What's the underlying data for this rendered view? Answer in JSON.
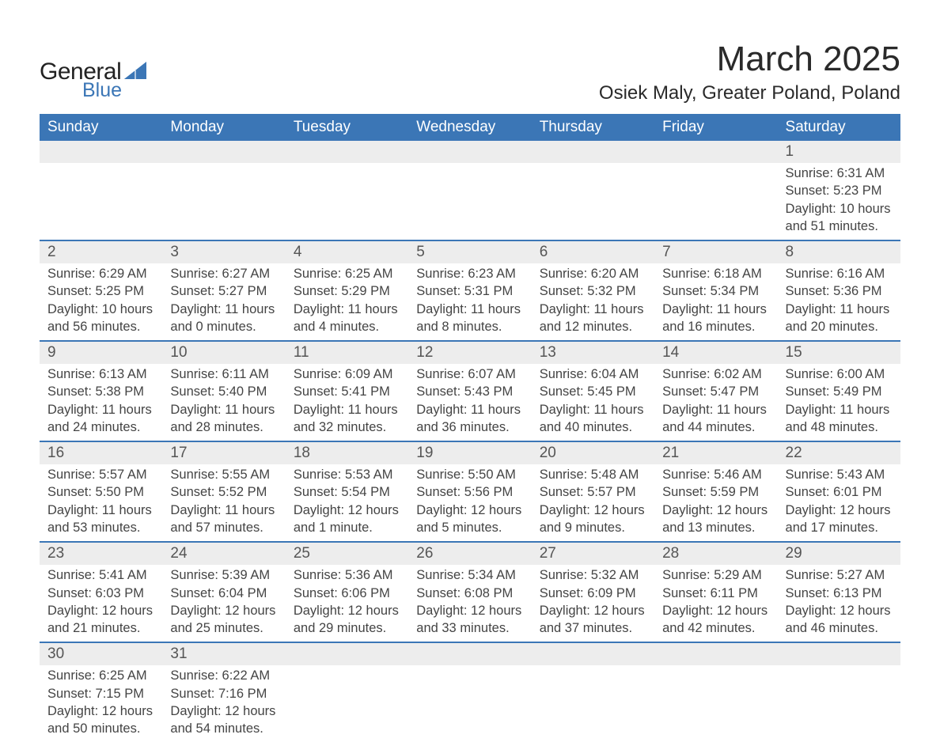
{
  "logo": {
    "text_general": "General",
    "text_blue": "Blue",
    "triangle_color": "#3b76b6"
  },
  "header": {
    "month_title": "March 2025",
    "location": "Osiek Maly, Greater Poland, Poland"
  },
  "calendar": {
    "type": "table",
    "header_bg": "#3b76b6",
    "header_text_color": "#ffffff",
    "daynum_bg": "#ededed",
    "row_border_color": "#3b76b6",
    "text_color": "#444444",
    "background_color": "#ffffff",
    "header_fontsize": 19,
    "daynum_fontsize": 19,
    "detail_fontsize": 16.5,
    "columns": [
      "Sunday",
      "Monday",
      "Tuesday",
      "Wednesday",
      "Thursday",
      "Friday",
      "Saturday"
    ],
    "weeks": [
      [
        {
          "num": "",
          "sunrise": "",
          "sunset": "",
          "daylight": ""
        },
        {
          "num": "",
          "sunrise": "",
          "sunset": "",
          "daylight": ""
        },
        {
          "num": "",
          "sunrise": "",
          "sunset": "",
          "daylight": ""
        },
        {
          "num": "",
          "sunrise": "",
          "sunset": "",
          "daylight": ""
        },
        {
          "num": "",
          "sunrise": "",
          "sunset": "",
          "daylight": ""
        },
        {
          "num": "",
          "sunrise": "",
          "sunset": "",
          "daylight": ""
        },
        {
          "num": "1",
          "sunrise": "Sunrise: 6:31 AM",
          "sunset": "Sunset: 5:23 PM",
          "daylight": "Daylight: 10 hours and 51 minutes."
        }
      ],
      [
        {
          "num": "2",
          "sunrise": "Sunrise: 6:29 AM",
          "sunset": "Sunset: 5:25 PM",
          "daylight": "Daylight: 10 hours and 56 minutes."
        },
        {
          "num": "3",
          "sunrise": "Sunrise: 6:27 AM",
          "sunset": "Sunset: 5:27 PM",
          "daylight": "Daylight: 11 hours and 0 minutes."
        },
        {
          "num": "4",
          "sunrise": "Sunrise: 6:25 AM",
          "sunset": "Sunset: 5:29 PM",
          "daylight": "Daylight: 11 hours and 4 minutes."
        },
        {
          "num": "5",
          "sunrise": "Sunrise: 6:23 AM",
          "sunset": "Sunset: 5:31 PM",
          "daylight": "Daylight: 11 hours and 8 minutes."
        },
        {
          "num": "6",
          "sunrise": "Sunrise: 6:20 AM",
          "sunset": "Sunset: 5:32 PM",
          "daylight": "Daylight: 11 hours and 12 minutes."
        },
        {
          "num": "7",
          "sunrise": "Sunrise: 6:18 AM",
          "sunset": "Sunset: 5:34 PM",
          "daylight": "Daylight: 11 hours and 16 minutes."
        },
        {
          "num": "8",
          "sunrise": "Sunrise: 6:16 AM",
          "sunset": "Sunset: 5:36 PM",
          "daylight": "Daylight: 11 hours and 20 minutes."
        }
      ],
      [
        {
          "num": "9",
          "sunrise": "Sunrise: 6:13 AM",
          "sunset": "Sunset: 5:38 PM",
          "daylight": "Daylight: 11 hours and 24 minutes."
        },
        {
          "num": "10",
          "sunrise": "Sunrise: 6:11 AM",
          "sunset": "Sunset: 5:40 PM",
          "daylight": "Daylight: 11 hours and 28 minutes."
        },
        {
          "num": "11",
          "sunrise": "Sunrise: 6:09 AM",
          "sunset": "Sunset: 5:41 PM",
          "daylight": "Daylight: 11 hours and 32 minutes."
        },
        {
          "num": "12",
          "sunrise": "Sunrise: 6:07 AM",
          "sunset": "Sunset: 5:43 PM",
          "daylight": "Daylight: 11 hours and 36 minutes."
        },
        {
          "num": "13",
          "sunrise": "Sunrise: 6:04 AM",
          "sunset": "Sunset: 5:45 PM",
          "daylight": "Daylight: 11 hours and 40 minutes."
        },
        {
          "num": "14",
          "sunrise": "Sunrise: 6:02 AM",
          "sunset": "Sunset: 5:47 PM",
          "daylight": "Daylight: 11 hours and 44 minutes."
        },
        {
          "num": "15",
          "sunrise": "Sunrise: 6:00 AM",
          "sunset": "Sunset: 5:49 PM",
          "daylight": "Daylight: 11 hours and 48 minutes."
        }
      ],
      [
        {
          "num": "16",
          "sunrise": "Sunrise: 5:57 AM",
          "sunset": "Sunset: 5:50 PM",
          "daylight": "Daylight: 11 hours and 53 minutes."
        },
        {
          "num": "17",
          "sunrise": "Sunrise: 5:55 AM",
          "sunset": "Sunset: 5:52 PM",
          "daylight": "Daylight: 11 hours and 57 minutes."
        },
        {
          "num": "18",
          "sunrise": "Sunrise: 5:53 AM",
          "sunset": "Sunset: 5:54 PM",
          "daylight": "Daylight: 12 hours and 1 minute."
        },
        {
          "num": "19",
          "sunrise": "Sunrise: 5:50 AM",
          "sunset": "Sunset: 5:56 PM",
          "daylight": "Daylight: 12 hours and 5 minutes."
        },
        {
          "num": "20",
          "sunrise": "Sunrise: 5:48 AM",
          "sunset": "Sunset: 5:57 PM",
          "daylight": "Daylight: 12 hours and 9 minutes."
        },
        {
          "num": "21",
          "sunrise": "Sunrise: 5:46 AM",
          "sunset": "Sunset: 5:59 PM",
          "daylight": "Daylight: 12 hours and 13 minutes."
        },
        {
          "num": "22",
          "sunrise": "Sunrise: 5:43 AM",
          "sunset": "Sunset: 6:01 PM",
          "daylight": "Daylight: 12 hours and 17 minutes."
        }
      ],
      [
        {
          "num": "23",
          "sunrise": "Sunrise: 5:41 AM",
          "sunset": "Sunset: 6:03 PM",
          "daylight": "Daylight: 12 hours and 21 minutes."
        },
        {
          "num": "24",
          "sunrise": "Sunrise: 5:39 AM",
          "sunset": "Sunset: 6:04 PM",
          "daylight": "Daylight: 12 hours and 25 minutes."
        },
        {
          "num": "25",
          "sunrise": "Sunrise: 5:36 AM",
          "sunset": "Sunset: 6:06 PM",
          "daylight": "Daylight: 12 hours and 29 minutes."
        },
        {
          "num": "26",
          "sunrise": "Sunrise: 5:34 AM",
          "sunset": "Sunset: 6:08 PM",
          "daylight": "Daylight: 12 hours and 33 minutes."
        },
        {
          "num": "27",
          "sunrise": "Sunrise: 5:32 AM",
          "sunset": "Sunset: 6:09 PM",
          "daylight": "Daylight: 12 hours and 37 minutes."
        },
        {
          "num": "28",
          "sunrise": "Sunrise: 5:29 AM",
          "sunset": "Sunset: 6:11 PM",
          "daylight": "Daylight: 12 hours and 42 minutes."
        },
        {
          "num": "29",
          "sunrise": "Sunrise: 5:27 AM",
          "sunset": "Sunset: 6:13 PM",
          "daylight": "Daylight: 12 hours and 46 minutes."
        }
      ],
      [
        {
          "num": "30",
          "sunrise": "Sunrise: 6:25 AM",
          "sunset": "Sunset: 7:15 PM",
          "daylight": "Daylight: 12 hours and 50 minutes."
        },
        {
          "num": "31",
          "sunrise": "Sunrise: 6:22 AM",
          "sunset": "Sunset: 7:16 PM",
          "daylight": "Daylight: 12 hours and 54 minutes."
        },
        {
          "num": "",
          "sunrise": "",
          "sunset": "",
          "daylight": ""
        },
        {
          "num": "",
          "sunrise": "",
          "sunset": "",
          "daylight": ""
        },
        {
          "num": "",
          "sunrise": "",
          "sunset": "",
          "daylight": ""
        },
        {
          "num": "",
          "sunrise": "",
          "sunset": "",
          "daylight": ""
        },
        {
          "num": "",
          "sunrise": "",
          "sunset": "",
          "daylight": ""
        }
      ]
    ]
  }
}
